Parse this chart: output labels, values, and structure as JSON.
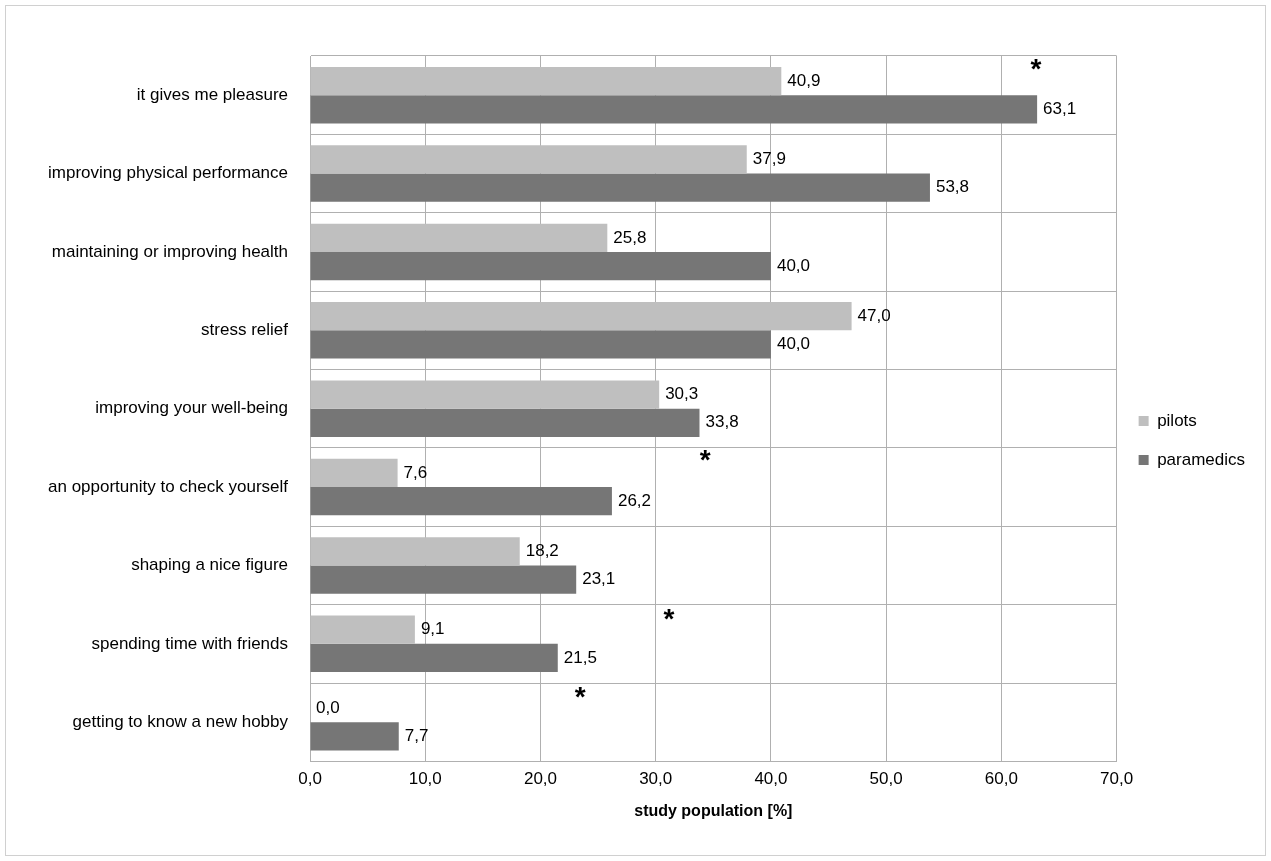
{
  "chart_data": {
    "type": "bar",
    "orientation": "horizontal",
    "xlabel": "study population [%]",
    "categories": [
      "it gives me pleasure",
      "improving physical performance",
      "maintaining or improving health",
      "stress relief",
      "improving your well-being",
      "an opportunity to check yourself",
      "shaping a nice figure",
      "spending time with friends",
      "getting to know a new hobby"
    ],
    "series": [
      {
        "name": "pilots",
        "color": "#bfbfbf",
        "values": [
          40.9,
          37.9,
          25.8,
          47.0,
          30.3,
          7.6,
          18.2,
          9.1,
          0.0
        ],
        "value_labels": [
          "40,9",
          "37,9",
          "25,8",
          "47,0",
          "30,3",
          "7,6",
          "18,2",
          "9,1",
          "0,0"
        ]
      },
      {
        "name": "paramedics",
        "color": "#767676",
        "values": [
          63.1,
          53.8,
          40.0,
          40.0,
          33.8,
          26.2,
          23.1,
          21.5,
          7.7
        ],
        "value_labels": [
          "63,1",
          "53,8",
          "40,0",
          "40,0",
          "33,8",
          "26,2",
          "23,1",
          "21,5",
          "7,7"
        ]
      }
    ],
    "xlim": [
      0,
      70
    ],
    "xticks": [
      {
        "value": 0,
        "label": "0,0"
      },
      {
        "value": 10,
        "label": "10,0"
      },
      {
        "value": 20,
        "label": "20,0"
      },
      {
        "value": 30,
        "label": "30,0"
      },
      {
        "value": 40,
        "label": "40,0"
      },
      {
        "value": 50,
        "label": "50,0"
      },
      {
        "value": 60,
        "label": "60,0"
      },
      {
        "value": 70,
        "label": "70,0"
      }
    ],
    "annotations": [
      "*",
      "*",
      "*",
      "*"
    ],
    "grid": true,
    "legend": "right"
  }
}
